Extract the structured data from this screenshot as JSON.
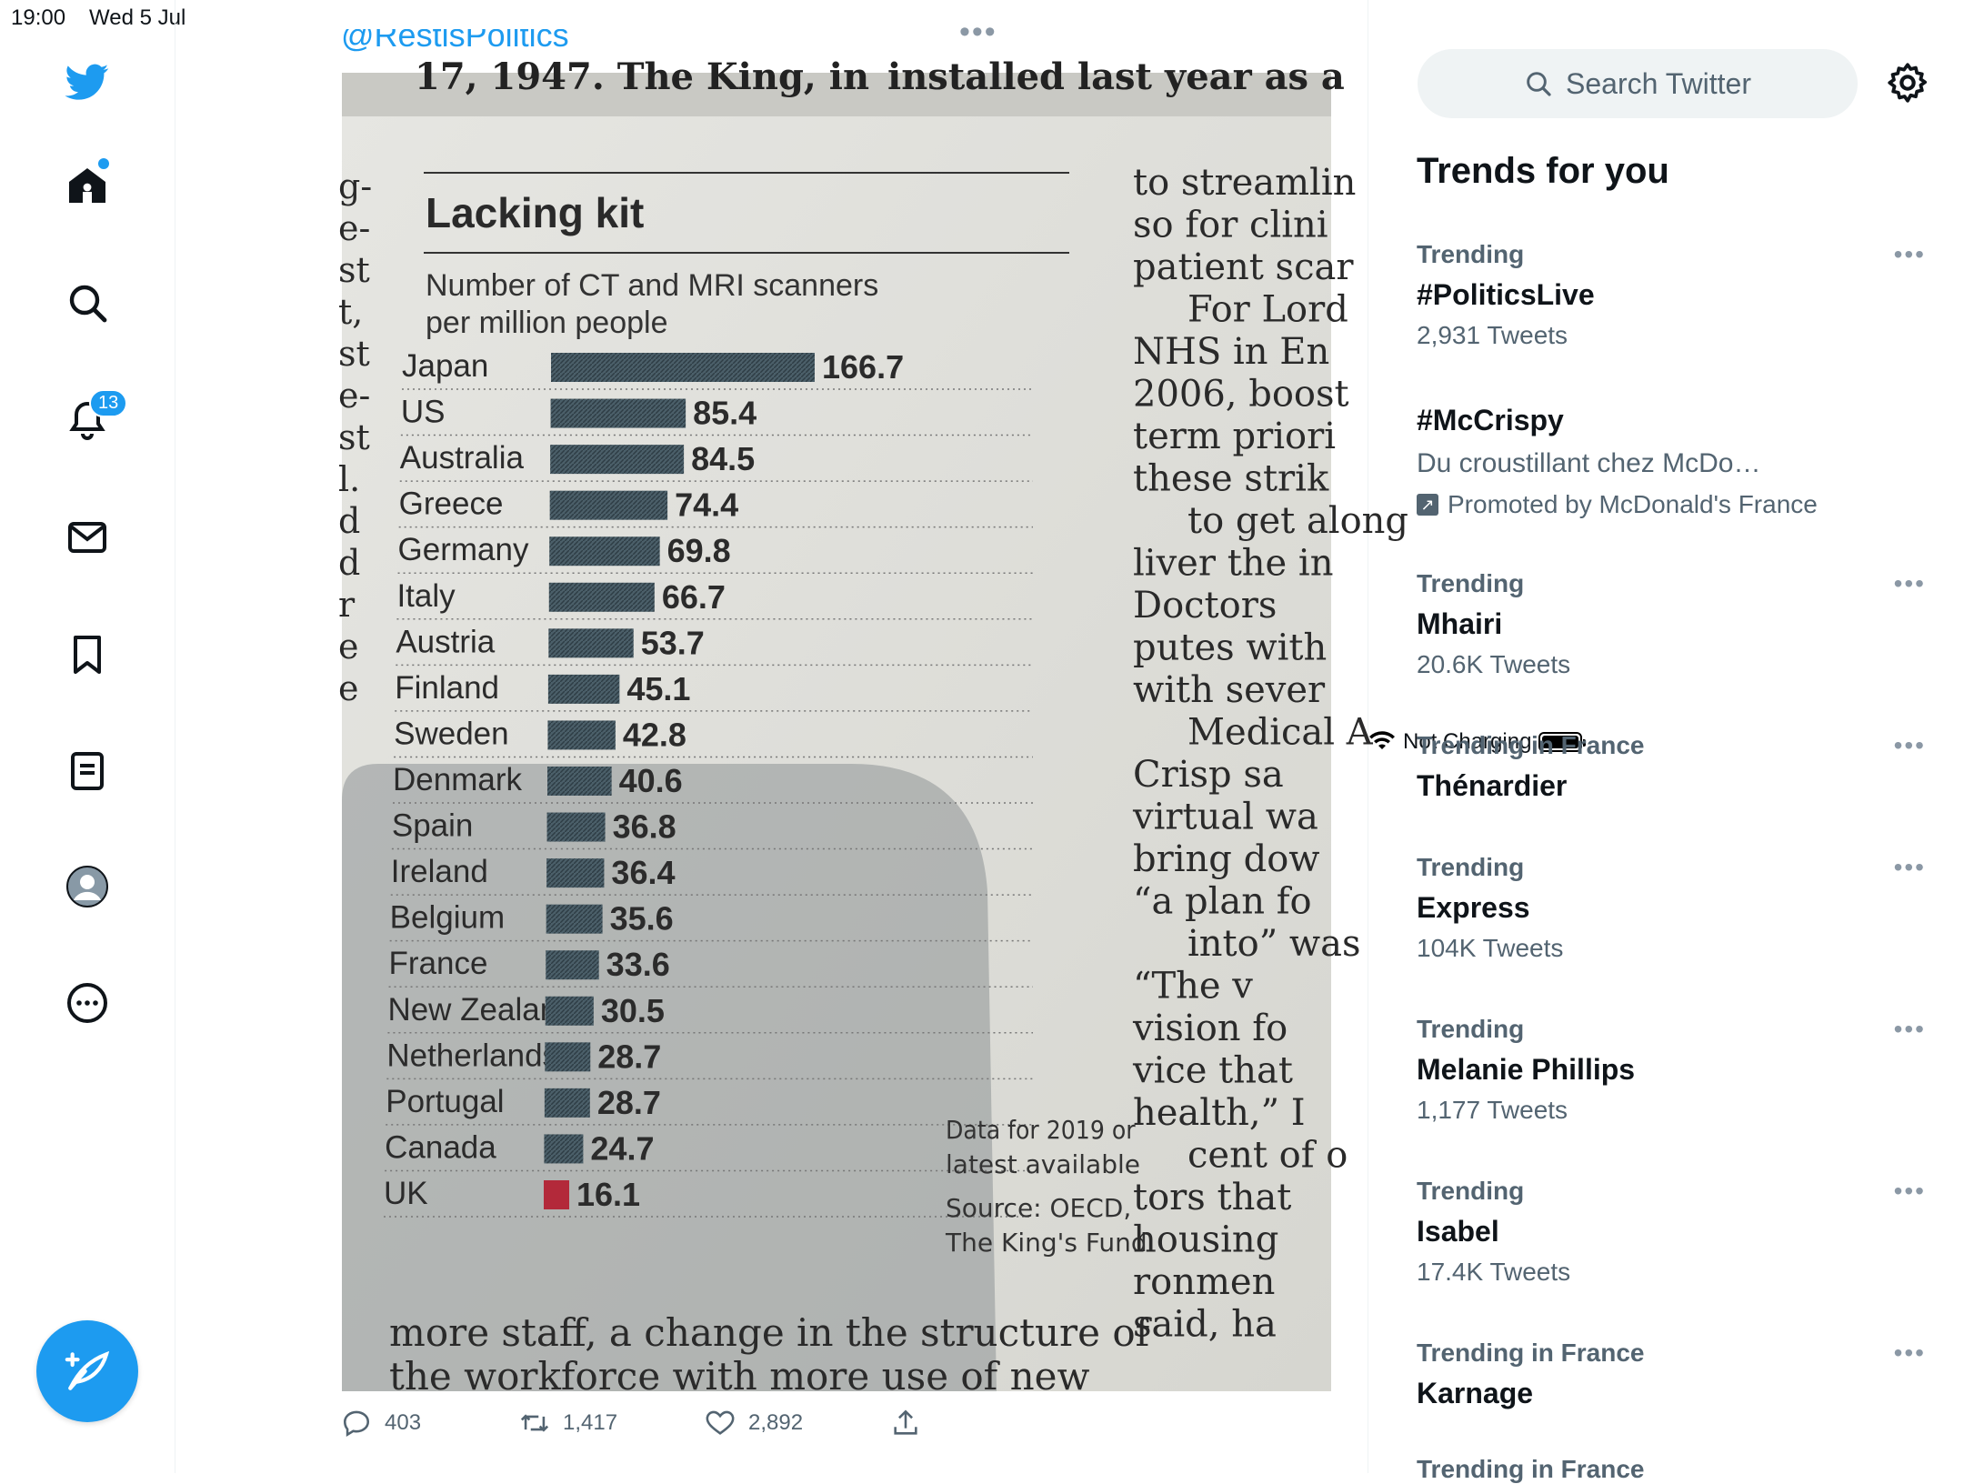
{
  "status_bar": {
    "time": "19:00",
    "date": "Wed 5 Jul",
    "battery_label": "Not Charging"
  },
  "nav": {
    "notifications_badge": "13"
  },
  "tweet": {
    "handle": "@RestisPolitics",
    "actions": {
      "replies": "403",
      "retweets": "1,417",
      "likes": "2,892"
    }
  },
  "photo": {
    "title": "Lacking kit",
    "subtitle_line1": "Number of CT and MRI scanners",
    "subtitle_line2": "per million people",
    "note_line1": "Data for 2019 or",
    "note_line2": "latest available",
    "source_line1": "Source: OECD,",
    "source_line2": "The King's Fund",
    "top_text_left": "17, 1947. The King, in",
    "top_text_right": "installed last year as a",
    "bottom_text_1": "more staff, a change in the structure of",
    "bottom_text_2": "the workforce with more use of new",
    "right_column": [
      "to streamlin",
      "so for clini",
      "patient scar",
      "For Lord",
      "NHS in En",
      "2006, boost",
      "term priori",
      "these strik",
      "to get along",
      "liver the in",
      "Doctors",
      "putes with",
      "with sever",
      "Medical A",
      "Crisp sa",
      "virtual wa",
      "bring dow",
      "“a plan fo",
      "into” was",
      "“The v",
      "vision fo",
      "vice that",
      "health,” I",
      "cent of o",
      "tors that",
      "housing",
      "ronmen",
      "said, ha"
    ],
    "left_column": [
      "g-",
      "e-",
      "st",
      "t,",
      "st",
      "e-",
      "st",
      "l.",
      "d",
      "d",
      "r",
      "e",
      "e"
    ]
  },
  "chart_data": {
    "type": "bar",
    "orientation": "horizontal",
    "title": "Lacking kit",
    "subtitle": "Number of CT and MRI scanners per million people",
    "categories": [
      "Japan",
      "US",
      "Australia",
      "Greece",
      "Germany",
      "Italy",
      "Austria",
      "Finland",
      "Sweden",
      "Denmark",
      "Spain",
      "Ireland",
      "Belgium",
      "France",
      "New Zealand",
      "Netherlands",
      "Portugal",
      "Canada",
      "UK"
    ],
    "values": [
      166.7,
      85.4,
      84.5,
      74.4,
      69.8,
      66.7,
      53.7,
      45.1,
      42.8,
      40.6,
      36.8,
      36.4,
      35.6,
      33.6,
      30.5,
      28.7,
      28.7,
      24.7,
      16.1
    ],
    "value_labels": [
      "166.7",
      "85.4",
      "84.5",
      "74.4",
      "69.8",
      "66.7",
      "53.7",
      "45.1",
      "42.8",
      "40.6",
      "36.8",
      "36.4",
      "35.6",
      "33.6",
      "30.5",
      "28.7",
      "28.7",
      "24.7",
      "16.1"
    ],
    "highlight_category": "UK",
    "bar_color": "#3f5560",
    "highlight_color": "#b3293a",
    "grid": false,
    "legend": "none"
  },
  "sidebar": {
    "search_placeholder": "Search Twitter",
    "trends_title": "Trends for you",
    "trends": [
      {
        "context": "Trending",
        "name": "#PoliticsLive",
        "count": "2,931 Tweets"
      },
      {
        "context": "",
        "name": "#McCrispy",
        "description": "Du croustillant chez McDo…",
        "promoted": "Promoted by McDonald's France"
      },
      {
        "context": "Trending",
        "name": "Mhairi",
        "count": "20.6K Tweets"
      },
      {
        "context": "Trending in France",
        "name": "Thénardier",
        "count": ""
      },
      {
        "context": "Trending",
        "name": "Express",
        "count": "104K Tweets"
      },
      {
        "context": "Trending",
        "name": "Melanie Phillips",
        "count": "1,177 Tweets"
      },
      {
        "context": "Trending",
        "name": "Isabel",
        "count": "17.4K Tweets"
      },
      {
        "context": "Trending in France",
        "name": "Karnage",
        "count": ""
      },
      {
        "context": "Trending in France",
        "name": "",
        "count": ""
      }
    ]
  },
  "colors": {
    "accent": "#1d9bf0",
    "secondary_text": "#536471"
  }
}
